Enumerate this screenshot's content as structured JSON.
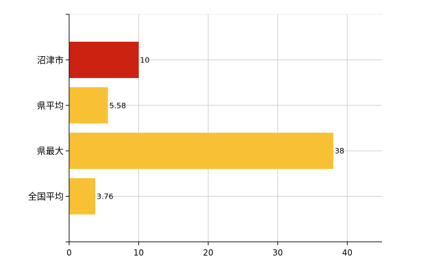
{
  "chart_data": {
    "type": "bar",
    "orientation": "horizontal",
    "categories": [
      "沼津市",
      "県平均",
      "県最大",
      "全国平均"
    ],
    "values": [
      10,
      5.58,
      38,
      3.76
    ],
    "data_labels": [
      "10",
      "5.58",
      "38",
      "3.76"
    ],
    "colors": [
      "#cc2211",
      "#f8c135",
      "#f8c135",
      "#f8c135"
    ],
    "title": "",
    "xlabel": "",
    "ylabel": "",
    "xlim": [
      0,
      45
    ],
    "x_ticks": [
      0,
      10,
      20,
      30,
      40
    ],
    "grid": true,
    "legend": "none"
  }
}
